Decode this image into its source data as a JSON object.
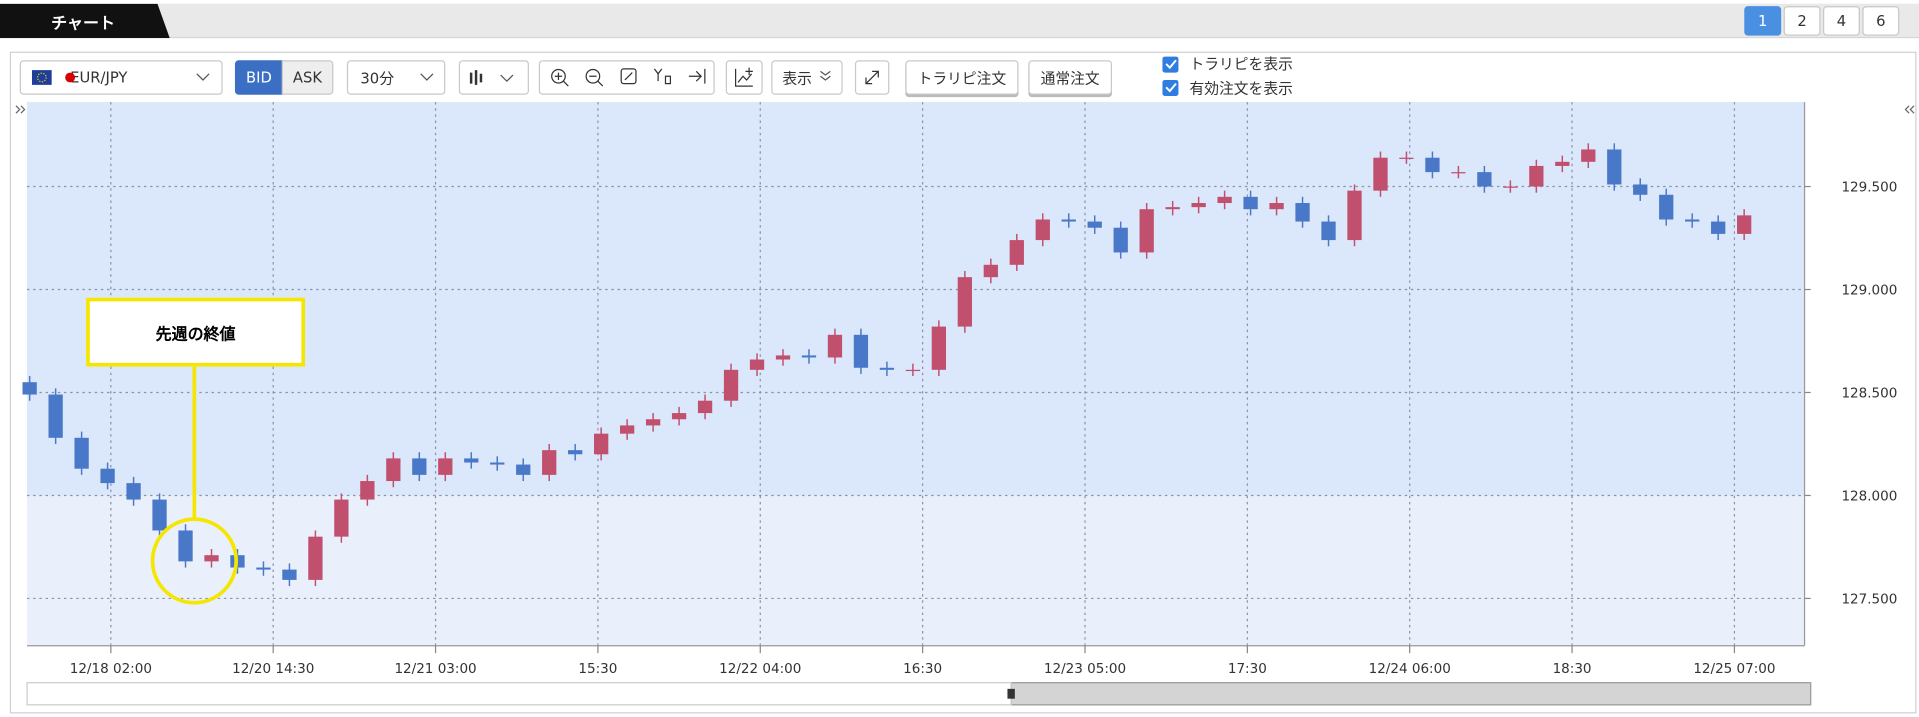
{
  "tab": "チャート",
  "pages": [
    "1",
    "2",
    "4",
    "6"
  ],
  "toolbar": {
    "symbol": "EUR/JPY",
    "bid": "BID",
    "ask": "ASK",
    "interval": "30分",
    "display": "表示",
    "trailing_order": "トラリピ注文",
    "normal_order": "通常注文",
    "show_trailing": "トラリピを表示",
    "show_orders": "有効注文を表示"
  },
  "chart_data": {
    "type": "candlestick",
    "annotation": "先週の終値",
    "up_color": "#c0506e",
    "down_color": "#4a78c8",
    "band_from": 128,
    "x": [
      0,
      4,
      8,
      12,
      16,
      20,
      24,
      28,
      32,
      36,
      40,
      44,
      48,
      52,
      56,
      60,
      64,
      68,
      72,
      76,
      80,
      84,
      88,
      92,
      96,
      100,
      104,
      108,
      112,
      116,
      120,
      124,
      128,
      132,
      136,
      140,
      144,
      148,
      152,
      156,
      160,
      164,
      168,
      172,
      176,
      180,
      184,
      188,
      192,
      196,
      200,
      204,
      208,
      212,
      216,
      220,
      224,
      228,
      232,
      236,
      240,
      244,
      248,
      252,
      256,
      260,
      264
    ],
    "open": [
      128.55,
      128.49,
      128.28,
      128.13,
      128.06,
      127.98,
      127.83,
      127.68,
      127.71,
      127.65,
      127.64,
      127.59,
      127.8,
      127.98,
      128.07,
      128.18,
      128.1,
      128.18,
      128.16,
      128.15,
      128.1,
      128.22,
      128.2,
      128.3,
      128.34,
      128.37,
      128.4,
      128.46,
      128.61,
      128.66,
      128.68,
      128.67,
      128.78,
      128.62,
      128.61,
      128.61,
      128.82,
      129.06,
      129.12,
      129.24,
      129.34,
      129.33,
      129.3,
      129.18,
      129.39,
      129.4,
      129.42,
      129.45,
      129.39,
      129.42,
      129.33,
      129.24,
      129.48,
      129.64,
      129.64,
      129.57,
      129.57,
      129.5,
      129.5,
      129.6,
      129.62,
      129.68,
      129.51,
      129.46,
      129.34,
      129.33,
      129.27
    ],
    "high": [
      128.58,
      128.52,
      128.31,
      128.16,
      128.09,
      128.01,
      127.86,
      127.74,
      127.74,
      127.68,
      127.67,
      127.83,
      128.01,
      128.1,
      128.21,
      128.21,
      128.21,
      128.21,
      128.19,
      128.18,
      128.25,
      128.25,
      128.33,
      128.37,
      128.4,
      128.43,
      128.49,
      128.64,
      128.69,
      128.71,
      128.71,
      128.81,
      128.81,
      128.65,
      128.64,
      128.85,
      129.09,
      129.15,
      129.27,
      129.37,
      129.37,
      129.36,
      129.33,
      129.42,
      129.43,
      129.45,
      129.48,
      129.48,
      129.45,
      129.45,
      129.36,
      129.51,
      129.67,
      129.67,
      129.67,
      129.6,
      129.6,
      129.53,
      129.63,
      129.65,
      129.71,
      129.71,
      129.54,
      129.49,
      129.37,
      129.36,
      129.39
    ],
    "low": [
      128.46,
      128.25,
      128.1,
      128.03,
      127.95,
      127.8,
      127.65,
      127.65,
      127.62,
      127.61,
      127.56,
      127.56,
      127.77,
      127.95,
      128.04,
      128.07,
      128.07,
      128.13,
      128.12,
      128.07,
      128.07,
      128.17,
      128.17,
      128.27,
      128.31,
      128.34,
      128.37,
      128.43,
      128.58,
      128.63,
      128.64,
      128.64,
      128.59,
      128.58,
      128.58,
      128.58,
      128.79,
      129.03,
      129.09,
      129.21,
      129.3,
      129.27,
      129.15,
      129.15,
      129.36,
      129.37,
      129.39,
      129.36,
      129.36,
      129.3,
      129.21,
      129.21,
      129.45,
      129.61,
      129.54,
      129.54,
      129.47,
      129.47,
      129.47,
      129.57,
      129.59,
      129.48,
      129.43,
      129.31,
      129.3,
      129.24,
      129.24
    ],
    "close": [
      128.49,
      128.28,
      128.13,
      128.06,
      127.98,
      127.83,
      127.68,
      127.71,
      127.65,
      127.64,
      127.59,
      127.8,
      127.98,
      128.07,
      128.18,
      128.1,
      128.18,
      128.16,
      128.15,
      128.1,
      128.22,
      128.2,
      128.3,
      128.34,
      128.37,
      128.4,
      128.46,
      128.61,
      128.66,
      128.68,
      128.67,
      128.78,
      128.62,
      128.61,
      128.61,
      128.82,
      129.06,
      129.12,
      129.24,
      129.34,
      129.33,
      129.3,
      129.18,
      129.39,
      129.4,
      129.42,
      129.45,
      129.39,
      129.42,
      129.33,
      129.24,
      129.48,
      129.64,
      129.64,
      129.57,
      129.57,
      129.5,
      129.5,
      129.6,
      129.62,
      129.68,
      129.51,
      129.46,
      129.34,
      129.33,
      129.27,
      129.36
    ],
    "xlim": [
      -0.4,
      273.3
    ],
    "xticks": [
      {
        "value": 12.5,
        "label": "12/18 02:00"
      },
      {
        "value": 37.5,
        "label": "12/20 14:30"
      },
      {
        "value": 62.5,
        "label": "12/21 03:00"
      },
      {
        "value": 87.5,
        "label": "15:30"
      },
      {
        "value": 112.5,
        "label": "12/22 04:00"
      },
      {
        "value": 137.5,
        "label": "16:30"
      },
      {
        "value": 162.5,
        "label": "12/23 05:00"
      },
      {
        "value": 187.5,
        "label": "17:30"
      },
      {
        "value": 212.5,
        "label": "12/24 06:00"
      },
      {
        "value": 237.5,
        "label": "18:30"
      },
      {
        "value": 262.5,
        "label": "12/25 07:00"
      }
    ],
    "ylim": [
      127.27,
      129.91
    ],
    "yticks": [
      {
        "value": 127.5,
        "label": "127.500"
      },
      {
        "value": 128,
        "label": "128.000"
      },
      {
        "value": 128.5,
        "label": "128.500"
      },
      {
        "value": 129,
        "label": "129.000"
      },
      {
        "value": 129.5,
        "label": "129.500"
      }
    ],
    "grid": true
  }
}
